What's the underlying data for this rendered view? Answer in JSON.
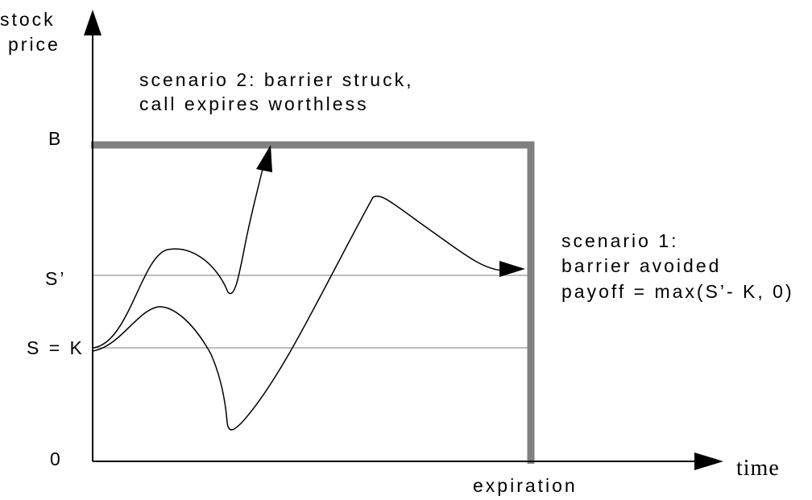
{
  "axis_labels": {
    "y_line1": "stock",
    "y_line2": "price",
    "x": "time",
    "x_tick": "expiration"
  },
  "levels": {
    "barrier": "B",
    "s_prime": "S’",
    "s_eq_k": "S = K",
    "zero": "0"
  },
  "scenario2": {
    "line1": "scenario 2: barrier struck,",
    "line2": "call expires worthless"
  },
  "scenario1": {
    "line1": "scenario 1:",
    "line2": "barrier avoided",
    "line3": "payoff = max(S’- K, 0)"
  },
  "colors": {
    "barrier": "#808080",
    "reference_lines": "#a6a6a6",
    "ink": "#000000"
  }
}
